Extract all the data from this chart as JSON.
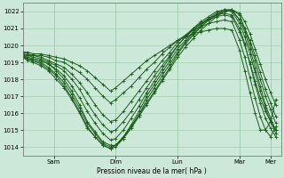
{
  "bg_color": "#cce8d8",
  "grid_color": "#99ccaa",
  "line_color": "#1a5c1a",
  "ylim": [
    1013.5,
    1022.5
  ],
  "yticks": [
    1014,
    1015,
    1016,
    1017,
    1018,
    1019,
    1020,
    1021,
    1022
  ],
  "xlabel": "Pression niveau de la mer( hPa )",
  "xlim": [
    0,
    200
  ],
  "xtick_positions": [
    24,
    72,
    120,
    168,
    192
  ],
  "xtick_labels": [
    "Sam",
    "Dim",
    "Lun",
    "Mar",
    "Mer"
  ],
  "series": [
    {
      "x": [
        0,
        4,
        8,
        14,
        20,
        26,
        32,
        38,
        44,
        50,
        56,
        62,
        68,
        72,
        78,
        84,
        90,
        96,
        102,
        108,
        114,
        120,
        126,
        132,
        138,
        144,
        150,
        156,
        162,
        168,
        172,
        176,
        180,
        184,
        188,
        192,
        196
      ],
      "y": [
        1019.3,
        1019.2,
        1019.2,
        1019.1,
        1018.9,
        1018.5,
        1018.0,
        1017.3,
        1016.5,
        1015.5,
        1014.9,
        1014.3,
        1014.1,
        1014.1,
        1014.5,
        1015.1,
        1015.8,
        1016.5,
        1017.2,
        1017.9,
        1018.6,
        1019.3,
        1019.9,
        1020.4,
        1020.9,
        1021.3,
        1021.7,
        1022.0,
        1022.1,
        1021.9,
        1021.4,
        1020.7,
        1019.8,
        1018.9,
        1018.0,
        1017.2,
        1016.5
      ]
    },
    {
      "x": [
        0,
        4,
        8,
        14,
        20,
        26,
        32,
        38,
        44,
        50,
        56,
        62,
        68,
        72,
        78,
        84,
        90,
        96,
        102,
        108,
        114,
        120,
        126,
        132,
        138,
        144,
        150,
        156,
        162,
        168,
        172,
        176,
        180,
        184,
        188,
        192,
        196
      ],
      "y": [
        1019.3,
        1019.2,
        1019.1,
        1019.0,
        1018.7,
        1018.3,
        1017.8,
        1017.1,
        1016.3,
        1015.4,
        1014.8,
        1014.2,
        1014.0,
        1014.1,
        1014.6,
        1015.2,
        1015.9,
        1016.6,
        1017.3,
        1018.0,
        1018.7,
        1019.5,
        1020.1,
        1020.6,
        1021.1,
        1021.5,
        1021.8,
        1022.0,
        1022.1,
        1021.5,
        1021.0,
        1020.3,
        1019.4,
        1018.4,
        1017.4,
        1016.6,
        1015.8
      ]
    },
    {
      "x": [
        0,
        4,
        8,
        14,
        20,
        26,
        32,
        38,
        44,
        50,
        56,
        62,
        68,
        72,
        78,
        84,
        90,
        96,
        102,
        108,
        114,
        120,
        126,
        132,
        138,
        144,
        150,
        156,
        162,
        168,
        172,
        176,
        180,
        184,
        188,
        192,
        196
      ],
      "y": [
        1019.3,
        1019.1,
        1019.0,
        1018.8,
        1018.5,
        1018.0,
        1017.5,
        1016.8,
        1016.0,
        1015.1,
        1014.6,
        1014.1,
        1013.9,
        1014.0,
        1014.5,
        1015.2,
        1015.9,
        1016.8,
        1017.5,
        1018.2,
        1018.9,
        1019.6,
        1020.2,
        1020.7,
        1021.1,
        1021.5,
        1021.8,
        1022.1,
        1022.1,
        1021.8,
        1021.0,
        1020.1,
        1019.1,
        1018.0,
        1017.0,
        1016.2,
        1015.4
      ]
    },
    {
      "x": [
        0,
        4,
        8,
        14,
        20,
        26,
        32,
        38,
        44,
        50,
        56,
        62,
        68,
        72,
        78,
        84,
        90,
        96,
        102,
        108,
        114,
        120,
        126,
        132,
        138,
        144,
        150,
        156,
        162,
        168,
        172,
        176,
        180,
        184,
        188,
        192,
        196
      ],
      "y": [
        1019.4,
        1019.2,
        1019.1,
        1018.9,
        1018.6,
        1018.2,
        1017.6,
        1016.9,
        1016.1,
        1015.2,
        1014.6,
        1014.1,
        1013.9,
        1014.1,
        1014.6,
        1015.3,
        1016.1,
        1017.0,
        1017.7,
        1018.4,
        1019.1,
        1019.8,
        1020.3,
        1020.8,
        1021.2,
        1021.6,
        1021.9,
        1022.1,
        1022.1,
        1021.5,
        1020.8,
        1019.8,
        1018.7,
        1017.6,
        1016.5,
        1015.7,
        1015.0
      ]
    },
    {
      "x": [
        0,
        4,
        8,
        14,
        20,
        26,
        32,
        38,
        44,
        50,
        56,
        62,
        68,
        72,
        78,
        84,
        90,
        96,
        102,
        108,
        114,
        120,
        126,
        132,
        138,
        144,
        150,
        156,
        162,
        168,
        172,
        176,
        180,
        184,
        188,
        192,
        196
      ],
      "y": [
        1019.4,
        1019.3,
        1019.2,
        1019.1,
        1018.9,
        1018.6,
        1018.2,
        1017.6,
        1016.9,
        1016.1,
        1015.4,
        1014.8,
        1014.4,
        1014.5,
        1015.0,
        1015.7,
        1016.4,
        1017.2,
        1017.9,
        1018.6,
        1019.3,
        1020.0,
        1020.5,
        1021.0,
        1021.4,
        1021.7,
        1022.0,
        1022.1,
        1022.0,
        1021.3,
        1020.5,
        1019.5,
        1018.4,
        1017.3,
        1016.3,
        1015.5,
        1014.8
      ]
    },
    {
      "x": [
        0,
        4,
        8,
        14,
        20,
        26,
        32,
        38,
        44,
        50,
        56,
        62,
        68,
        72,
        78,
        84,
        90,
        96,
        102,
        108,
        114,
        120,
        126,
        132,
        138,
        144,
        150,
        156,
        162,
        168,
        172,
        176,
        180,
        184,
        188,
        192,
        196
      ],
      "y": [
        1019.5,
        1019.4,
        1019.3,
        1019.2,
        1019.0,
        1018.8,
        1018.5,
        1018.0,
        1017.4,
        1016.6,
        1015.9,
        1015.3,
        1014.9,
        1015.0,
        1015.5,
        1016.1,
        1016.8,
        1017.5,
        1018.2,
        1018.8,
        1019.4,
        1020.0,
        1020.5,
        1020.9,
        1021.3,
        1021.5,
        1021.7,
        1021.8,
        1021.7,
        1020.8,
        1020.0,
        1019.0,
        1017.9,
        1016.9,
        1016.1,
        1015.5,
        1015.0
      ]
    },
    {
      "x": [
        0,
        4,
        8,
        14,
        20,
        26,
        32,
        38,
        44,
        50,
        56,
        62,
        68,
        72,
        78,
        84,
        90,
        96,
        102,
        108,
        114,
        120,
        126,
        132,
        138,
        144,
        150,
        156,
        162,
        168,
        172,
        176,
        180,
        184,
        188,
        192,
        196
      ],
      "y": [
        1019.5,
        1019.4,
        1019.4,
        1019.3,
        1019.1,
        1018.9,
        1018.7,
        1018.3,
        1017.8,
        1017.2,
        1016.5,
        1015.9,
        1015.5,
        1015.6,
        1016.1,
        1016.7,
        1017.3,
        1017.9,
        1018.5,
        1019.1,
        1019.6,
        1020.2,
        1020.6,
        1021.0,
        1021.3,
        1021.6,
        1021.8,
        1021.9,
        1021.8,
        1021.0,
        1020.1,
        1018.9,
        1017.7,
        1016.6,
        1015.7,
        1015.1,
        1014.6
      ]
    },
    {
      "x": [
        0,
        4,
        8,
        14,
        20,
        26,
        32,
        38,
        44,
        50,
        56,
        62,
        68,
        72,
        78,
        84,
        90,
        96,
        102,
        108,
        114,
        120,
        126,
        132,
        138,
        144,
        150,
        156,
        162,
        168,
        172,
        176,
        180,
        184,
        188,
        192,
        196
      ],
      "y": [
        1019.6,
        1019.5,
        1019.4,
        1019.4,
        1019.3,
        1019.1,
        1019.0,
        1018.7,
        1018.4,
        1018.0,
        1017.5,
        1017.0,
        1016.6,
        1016.8,
        1017.2,
        1017.6,
        1018.1,
        1018.6,
        1019.0,
        1019.5,
        1019.9,
        1020.3,
        1020.6,
        1020.9,
        1021.1,
        1021.3,
        1021.4,
        1021.5,
        1021.4,
        1020.3,
        1019.3,
        1018.1,
        1016.9,
        1015.8,
        1015.0,
        1014.6,
        1015.2
      ]
    },
    {
      "x": [
        0,
        4,
        8,
        14,
        20,
        26,
        32,
        38,
        44,
        50,
        56,
        62,
        68,
        72,
        78,
        84,
        90,
        96,
        102,
        108,
        114,
        120,
        126,
        132,
        138,
        144,
        150,
        156,
        162,
        168,
        172,
        176,
        180,
        184,
        188,
        192,
        196
      ],
      "y": [
        1019.6,
        1019.6,
        1019.5,
        1019.5,
        1019.4,
        1019.3,
        1019.2,
        1019.0,
        1018.8,
        1018.5,
        1018.1,
        1017.7,
        1017.3,
        1017.5,
        1017.9,
        1018.3,
        1018.7,
        1019.1,
        1019.4,
        1019.7,
        1020.0,
        1020.3,
        1020.5,
        1020.7,
        1020.8,
        1020.9,
        1021.0,
        1021.0,
        1020.9,
        1019.7,
        1018.5,
        1017.2,
        1016.0,
        1015.0,
        1015.0,
        1015.5,
        1016.8
      ]
    }
  ]
}
